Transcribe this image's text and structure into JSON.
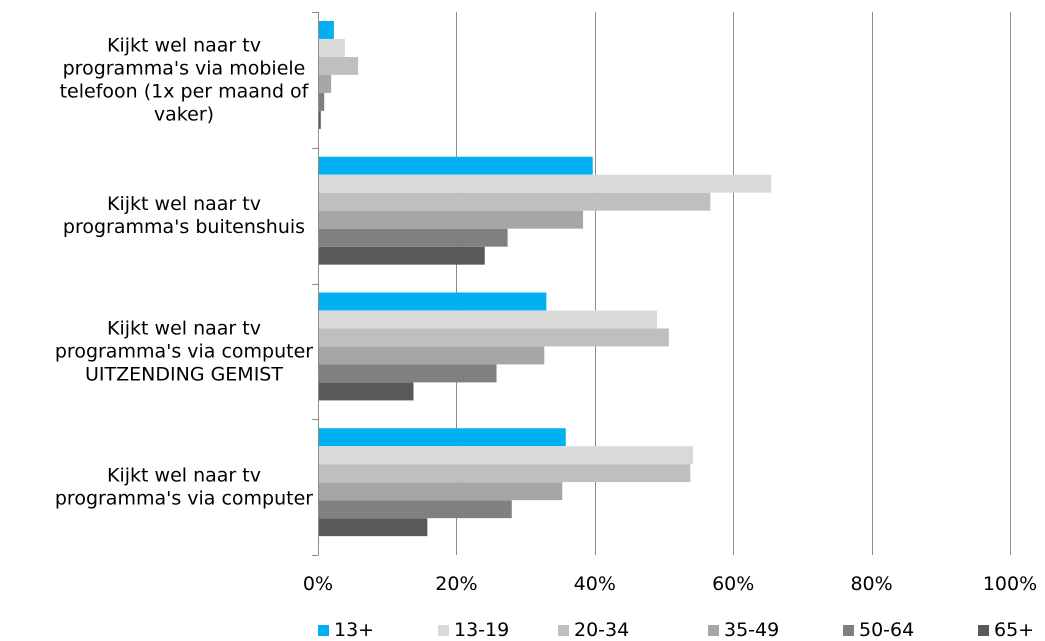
{
  "chart_data": {
    "type": "bar",
    "orientation": "horizontal",
    "categories": [
      [
        "Kijkt wel naar tv",
        "programma's via mobiele",
        "telefoon (1x per maand of",
        "vaker)"
      ],
      [
        "Kijkt wel naar tv",
        "programma's buitenshuis"
      ],
      [
        "Kijkt wel naar tv",
        "programma's via computer",
        "UITZENDING GEMIST"
      ],
      [
        "Kijkt wel naar tv",
        "programma's via computer"
      ]
    ],
    "series": [
      {
        "name": "13+",
        "color": "#00B0F0",
        "values": [
          2.3,
          39.7,
          33.0,
          35.8
        ]
      },
      {
        "name": "13-19",
        "color": "#D9D9D9",
        "values": [
          3.9,
          65.5,
          49.0,
          54.2
        ]
      },
      {
        "name": "20-34",
        "color": "#BFBFBF",
        "values": [
          5.8,
          56.7,
          50.7,
          53.8
        ]
      },
      {
        "name": "35-49",
        "color": "#A6A6A6",
        "values": [
          1.9,
          38.3,
          32.7,
          35.3
        ]
      },
      {
        "name": "50-64",
        "color": "#808080",
        "values": [
          0.9,
          27.4,
          25.8,
          28.0
        ]
      },
      {
        "name": "65+",
        "color": "#595959",
        "values": [
          0.4,
          24.1,
          13.8,
          15.8
        ]
      }
    ],
    "x_ticks": [
      "0%",
      "20%",
      "40%",
      "60%",
      "80%",
      "100%"
    ],
    "xlim": [
      0,
      100
    ],
    "grid": true,
    "legend_position": "bottom"
  }
}
